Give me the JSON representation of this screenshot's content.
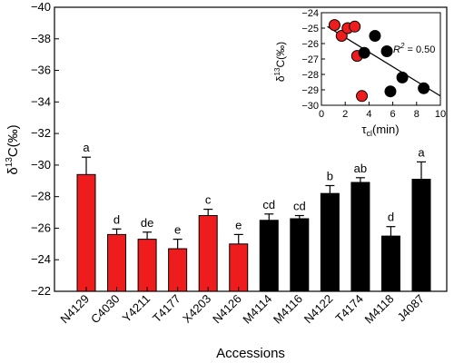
{
  "colors": {
    "red": "#ee1c1c",
    "black": "#000000"
  },
  "chart_data": [
    {
      "type": "bar",
      "xlabel": "Accessions",
      "ylabel_delta": "δ",
      "ylabel_sup": "13",
      "ylabel_tail": "C(‰)",
      "ylim": [
        -22,
        -40
      ],
      "yticks": [
        -22,
        -24,
        -26,
        -28,
        -30,
        -32,
        -34,
        -36,
        -38,
        -40
      ],
      "ytick_labels": [
        "−22",
        "−24",
        "−26",
        "−28",
        "−30",
        "−32",
        "−34",
        "−36",
        "−38",
        "−40"
      ],
      "inverted_axis": true,
      "categories": [
        "N4129",
        "C4030",
        "Y4211",
        "T4177",
        "X4203",
        "N4126",
        "M4114",
        "M4116",
        "N4122",
        "T4174",
        "M4118",
        "J4087"
      ],
      "values": [
        -29.4,
        -25.6,
        -25.3,
        -24.7,
        -26.8,
        -25.0,
        -26.5,
        -26.6,
        -28.2,
        -28.9,
        -25.5,
        -29.1
      ],
      "errors": [
        1.1,
        0.35,
        0.45,
        0.6,
        0.4,
        0.6,
        0.4,
        0.2,
        0.5,
        0.3,
        0.6,
        1.1
      ],
      "letters": [
        "a",
        "d",
        "de",
        "e",
        "c",
        "e",
        "cd",
        "cd",
        "b",
        "ab",
        "d",
        "a"
      ],
      "bar_colors": [
        "red",
        "red",
        "red",
        "red",
        "red",
        "red",
        "black",
        "black",
        "black",
        "black",
        "black",
        "black"
      ]
    },
    {
      "type": "scatter",
      "placement": "top-right inset",
      "xlabel_main": "τ",
      "xlabel_sub": "cl",
      "xlabel_tail": "(min)",
      "ylabel_delta": "δ",
      "ylabel_sup": "13",
      "ylabel_tail": "C(‰)",
      "xlim": [
        0,
        10
      ],
      "xticks": [
        0,
        2,
        4,
        6,
        8,
        10
      ],
      "xtick_labels": [
        "0",
        "2",
        "4",
        "6",
        "8",
        "10"
      ],
      "ylim": [
        -30,
        -24
      ],
      "yticks": [
        -24,
        -25,
        -26,
        -27,
        -28,
        -29,
        -30
      ],
      "ytick_labels": [
        "−24",
        "−25",
        "−26",
        "−27",
        "−28",
        "−29",
        "−30"
      ],
      "r2_label": "R",
      "r2_sup": "2",
      "r2_value": " = 0.50",
      "fit_line": {
        "x": [
          0.5,
          10
        ],
        "y": [
          -24.9,
          -29.4
        ]
      },
      "points": [
        {
          "x": 1.1,
          "y": -24.8,
          "group": "red"
        },
        {
          "x": 1.7,
          "y": -25.5,
          "group": "red"
        },
        {
          "x": 2.2,
          "y": -25.0,
          "group": "red"
        },
        {
          "x": 2.8,
          "y": -24.9,
          "group": "red"
        },
        {
          "x": 3.0,
          "y": -26.8,
          "group": "red"
        },
        {
          "x": 3.4,
          "y": -29.4,
          "group": "red"
        },
        {
          "x": 3.6,
          "y": -26.6,
          "group": "black"
        },
        {
          "x": 4.5,
          "y": -25.5,
          "group": "black"
        },
        {
          "x": 5.5,
          "y": -26.5,
          "group": "black"
        },
        {
          "x": 5.8,
          "y": -29.1,
          "group": "black"
        },
        {
          "x": 6.8,
          "y": -28.2,
          "group": "black"
        },
        {
          "x": 8.6,
          "y": -28.9,
          "group": "black"
        }
      ]
    }
  ]
}
